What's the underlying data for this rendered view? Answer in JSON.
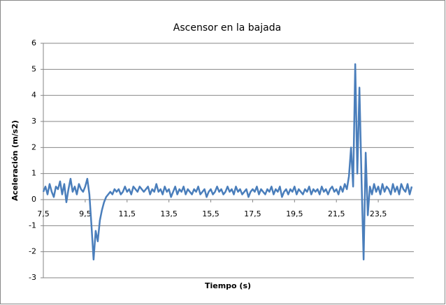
{
  "chart_data": {
    "type": "line",
    "title": "Ascensor en la bajada",
    "x_label": "Tiempo (s)",
    "y_label": "Aceleración (m/s2)",
    "x": [
      7.5,
      7.6,
      7.7,
      7.8,
      7.9,
      8.0,
      8.1,
      8.2,
      8.3,
      8.4,
      8.5,
      8.6,
      8.7,
      8.8,
      8.9,
      9.0,
      9.1,
      9.2,
      9.3,
      9.4,
      9.5,
      9.6,
      9.7,
      9.8,
      9.9,
      10.0,
      10.1,
      10.2,
      10.3,
      10.4,
      10.5,
      10.6,
      10.7,
      10.8,
      10.9,
      11.0,
      11.1,
      11.2,
      11.3,
      11.4,
      11.5,
      11.6,
      11.7,
      11.8,
      11.9,
      12.0,
      12.1,
      12.2,
      12.3,
      12.4,
      12.5,
      12.6,
      12.7,
      12.8,
      12.9,
      13.0,
      13.1,
      13.2,
      13.3,
      13.4,
      13.5,
      13.6,
      13.7,
      13.8,
      13.9,
      14.0,
      14.1,
      14.2,
      14.3,
      14.4,
      14.5,
      14.6,
      14.7,
      14.8,
      14.9,
      15.0,
      15.1,
      15.2,
      15.3,
      15.4,
      15.5,
      15.6,
      15.7,
      15.8,
      15.9,
      16.0,
      16.1,
      16.2,
      16.3,
      16.4,
      16.5,
      16.6,
      16.7,
      16.8,
      16.9,
      17.0,
      17.1,
      17.2,
      17.3,
      17.4,
      17.5,
      17.6,
      17.7,
      17.8,
      17.9,
      18.0,
      18.1,
      18.2,
      18.3,
      18.4,
      18.5,
      18.6,
      18.7,
      18.8,
      18.9,
      19.0,
      19.1,
      19.2,
      19.3,
      19.4,
      19.5,
      19.6,
      19.7,
      19.8,
      19.9,
      20.0,
      20.1,
      20.2,
      20.3,
      20.4,
      20.5,
      20.6,
      20.7,
      20.8,
      20.9,
      21.0,
      21.1,
      21.2,
      21.3,
      21.4,
      21.5,
      21.6,
      21.7,
      21.8,
      21.9,
      22.0,
      22.1,
      22.2,
      22.3,
      22.4,
      22.5,
      22.6,
      22.7,
      22.8,
      22.9,
      23.0,
      23.1,
      23.2,
      23.3,
      23.4,
      23.5,
      23.6,
      23.7,
      23.8,
      23.9,
      24.0,
      24.1,
      24.2,
      24.3,
      24.4,
      24.5,
      24.6,
      24.7,
      24.8,
      24.9,
      25.0,
      25.1
    ],
    "series": [
      {
        "color": "#4a7ebb",
        "values": [
          0.3,
          0.5,
          0.2,
          0.6,
          0.3,
          0.1,
          0.5,
          0.4,
          0.7,
          0.2,
          0.6,
          -0.1,
          0.4,
          0.8,
          0.3,
          0.5,
          0.2,
          0.6,
          0.4,
          0.3,
          0.5,
          0.8,
          0.2,
          -1.0,
          -2.3,
          -1.2,
          -1.6,
          -0.8,
          -0.4,
          -0.1,
          0.1,
          0.2,
          0.3,
          0.2,
          0.4,
          0.3,
          0.4,
          0.2,
          0.3,
          0.5,
          0.3,
          0.4,
          0.2,
          0.5,
          0.4,
          0.3,
          0.5,
          0.4,
          0.3,
          0.4,
          0.5,
          0.2,
          0.4,
          0.3,
          0.6,
          0.3,
          0.4,
          0.2,
          0.5,
          0.3,
          0.4,
          0.1,
          0.3,
          0.5,
          0.2,
          0.4,
          0.3,
          0.5,
          0.2,
          0.4,
          0.3,
          0.2,
          0.4,
          0.3,
          0.5,
          0.2,
          0.3,
          0.4,
          0.1,
          0.3,
          0.4,
          0.2,
          0.3,
          0.5,
          0.3,
          0.4,
          0.2,
          0.3,
          0.5,
          0.3,
          0.4,
          0.2,
          0.5,
          0.3,
          0.4,
          0.2,
          0.3,
          0.4,
          0.1,
          0.3,
          0.4,
          0.3,
          0.5,
          0.2,
          0.4,
          0.3,
          0.2,
          0.4,
          0.3,
          0.5,
          0.2,
          0.4,
          0.3,
          0.5,
          0.1,
          0.3,
          0.4,
          0.2,
          0.4,
          0.3,
          0.5,
          0.2,
          0.4,
          0.3,
          0.2,
          0.4,
          0.3,
          0.5,
          0.2,
          0.4,
          0.3,
          0.4,
          0.2,
          0.5,
          0.3,
          0.4,
          0.2,
          0.4,
          0.5,
          0.3,
          0.4,
          0.2,
          0.5,
          0.3,
          0.6,
          0.4,
          0.9,
          2.0,
          0.5,
          5.2,
          1.0,
          4.3,
          0.8,
          -2.3,
          1.8,
          -0.6,
          0.5,
          0.2,
          0.6,
          0.3,
          0.5,
          0.2,
          0.6,
          0.3,
          0.5,
          0.4,
          0.2,
          0.6,
          0.3,
          0.5,
          0.2,
          0.6,
          0.4,
          0.3,
          0.6,
          0.2,
          0.5
        ]
      }
    ],
    "xlim": [
      7.5,
      25.2
    ],
    "ylim": [
      -3,
      6
    ],
    "xticks": [
      {
        "value": 7.5,
        "label": "7,5"
      },
      {
        "value": 9.5,
        "label": "9,5"
      },
      {
        "value": 11.5,
        "label": "11,5"
      },
      {
        "value": 13.5,
        "label": "13,5"
      },
      {
        "value": 15.5,
        "label": "15,5"
      },
      {
        "value": 17.5,
        "label": "17,5"
      },
      {
        "value": 19.5,
        "label": "19,5"
      },
      {
        "value": 21.5,
        "label": "21,5"
      },
      {
        "value": 23.5,
        "label": "23,5"
      }
    ],
    "yticks": [
      -3,
      -2,
      -1,
      0,
      1,
      2,
      3,
      4,
      5,
      6
    ],
    "grid": true
  }
}
